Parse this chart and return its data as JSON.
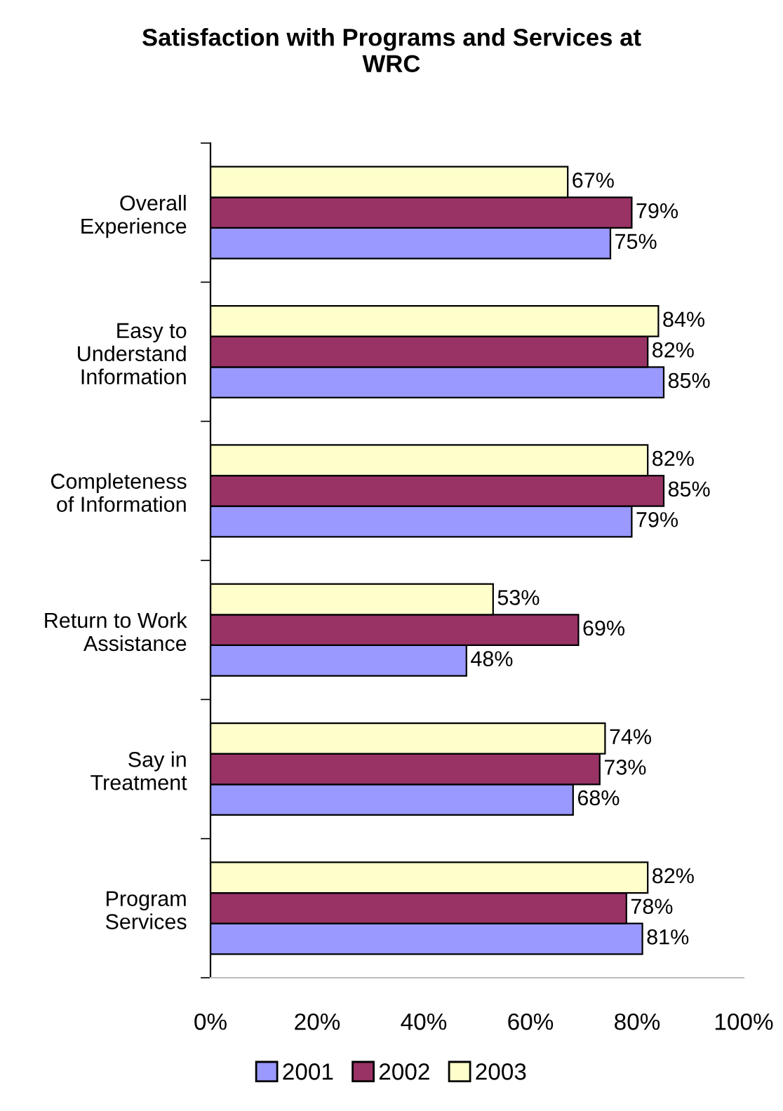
{
  "chart_data": {
    "type": "bar",
    "orientation": "horizontal",
    "title": "Satisfaction with Programs and Services at\nWRC",
    "categories": [
      "Overall\nExperience",
      "Easy to\nUnderstand\nInformation",
      "Completeness\nof Information",
      "Return to Work\nAssistance",
      "Say in\nTreatment",
      "Program\nServices"
    ],
    "series": [
      {
        "name": "2001",
        "color": "#9999ff",
        "values": [
          75,
          85,
          79,
          48,
          68,
          81
        ],
        "value_labels": [
          "75%",
          "85%",
          "79%",
          "48%",
          "68%",
          "81%"
        ]
      },
      {
        "name": "2002",
        "color": "#993366",
        "values": [
          79,
          82,
          85,
          69,
          73,
          78
        ],
        "value_labels": [
          "79%",
          "82%",
          "85%",
          "69%",
          "73%",
          "78%"
        ]
      },
      {
        "name": "2003",
        "color": "#ffffcc",
        "values": [
          67,
          84,
          82,
          53,
          74,
          82
        ],
        "value_labels": [
          "67%",
          "84%",
          "82%",
          "53%",
          "74%",
          "82%"
        ]
      }
    ],
    "xlim": [
      0,
      100
    ],
    "xticks": [
      {
        "value": 0,
        "label": "0%"
      },
      {
        "value": 20,
        "label": "20%"
      },
      {
        "value": 40,
        "label": "40%"
      },
      {
        "value": 60,
        "label": "60%"
      },
      {
        "value": 80,
        "label": "80%"
      },
      {
        "value": 100,
        "label": "100%"
      }
    ],
    "legend": "bottom",
    "grid": false
  }
}
